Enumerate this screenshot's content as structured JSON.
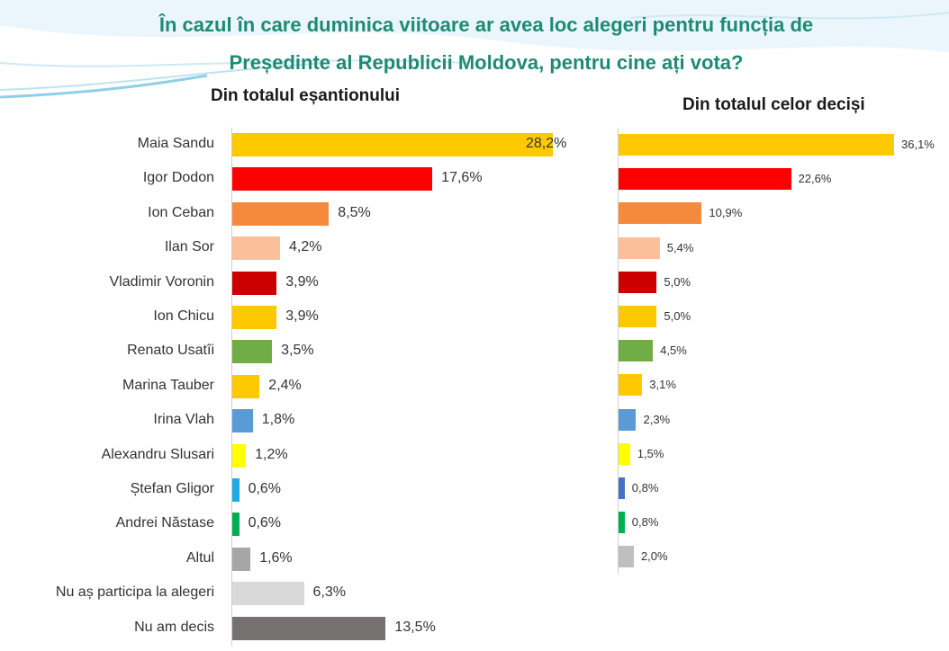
{
  "title_line1": "În cazul în care duminica viitoare ar avea loc alegeri pentru funcția de",
  "title_line2": "Președinte al Republicii Moldova, pentru cine ați vota?",
  "chart_data": [
    {
      "type": "bar",
      "orientation": "horizontal",
      "title": "Din totalul eșantionului",
      "categories": [
        "Maia Sandu",
        "Igor Dodon",
        "Ion Ceban",
        "Ilan Sor",
        "Vladimir Voronin",
        "Ion Chicu",
        "Renato Usatîi",
        "Marina Tauber",
        "Irina Vlah",
        "Alexandru Slusari",
        "Ștefan Gligor",
        "Andrei Năstase",
        "Altul",
        "Nu aș participa la alegeri",
        "Nu am decis"
      ],
      "values": [
        28.2,
        17.6,
        8.5,
        4.2,
        3.9,
        3.9,
        3.5,
        2.4,
        1.8,
        1.2,
        0.6,
        0.6,
        1.6,
        6.3,
        13.5
      ],
      "labels": [
        "28,2%",
        "17,6%",
        "8,5%",
        "4,2%",
        "3,9%",
        "3,9%",
        "3,5%",
        "2,4%",
        "1,8%",
        "1,2%",
        "0,6%",
        "0,6%",
        "1,6%",
        "6,3%",
        "13,5%"
      ],
      "colors": [
        "#ffc900",
        "#ff0000",
        "#f58a3c",
        "#fbbf9a",
        "#cc0000",
        "#ffc900",
        "#70ad47",
        "#ffc900",
        "#5b9bd5",
        "#ffff00",
        "#1eaae6",
        "#00b050",
        "#a6a6a6",
        "#d9d9d9",
        "#767171"
      ],
      "xlim": [
        0,
        28.2
      ]
    },
    {
      "type": "bar",
      "orientation": "horizontal",
      "title": "Din totalul celor deciși",
      "categories": [
        "Maia Sandu",
        "Igor Dodon",
        "Ion Ceban",
        "Ilan Sor",
        "Vladimir Voronin",
        "Ion Chicu",
        "Renato Usatîi",
        "Marina Tauber",
        "Irina Vlah",
        "Alexandru Slusari",
        "Ștefan Gligor",
        "Andrei Năstase",
        "Altul"
      ],
      "values": [
        36.1,
        22.6,
        10.9,
        5.4,
        5.0,
        5.0,
        4.5,
        3.1,
        2.3,
        1.5,
        0.8,
        0.8,
        2.0
      ],
      "labels": [
        "36,1%",
        "22,6%",
        "10,9%",
        "5,4%",
        "5,0%",
        "5,0%",
        "4,5%",
        "3,1%",
        "2,3%",
        "1,5%",
        "0,8%",
        "0,8%",
        "2,0%"
      ],
      "colors": [
        "#ffc900",
        "#ff0000",
        "#f58a3c",
        "#fbbf9a",
        "#cc0000",
        "#ffc900",
        "#70ad47",
        "#ffc900",
        "#5b9bd5",
        "#ffff00",
        "#4472c4",
        "#00b050",
        "#bfbfbf"
      ],
      "xlim": [
        0,
        36.1
      ]
    }
  ]
}
